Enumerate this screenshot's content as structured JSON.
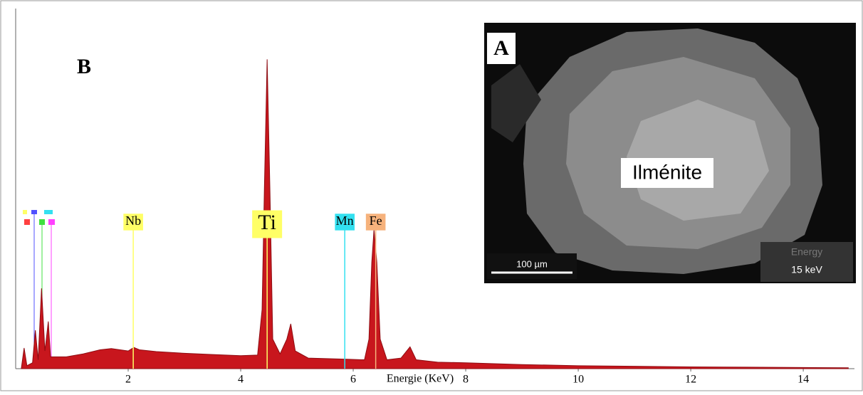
{
  "chart_data": {
    "type": "area",
    "panel_label": "B",
    "x_label": "Energie (KeV)",
    "color": "#c8161d",
    "xlim": [
      0,
      14.91
    ],
    "ylim": [
      0,
      61
    ],
    "xticks": [
      2,
      4,
      6,
      8,
      10,
      12,
      14
    ],
    "x": [
      0.1,
      0.15,
      0.2,
      0.3,
      0.35,
      0.4,
      0.46,
      0.52,
      0.58,
      0.62,
      0.7,
      0.9,
      1.2,
      1.5,
      1.7,
      2.0,
      2.1,
      2.2,
      2.5,
      3.0,
      3.5,
      4.0,
      4.3,
      4.38,
      4.42,
      4.47,
      4.52,
      4.57,
      4.7,
      4.82,
      4.89,
      4.97,
      5.2,
      5.9,
      6.2,
      6.28,
      6.33,
      6.37,
      6.42,
      6.48,
      6.6,
      6.85,
      7.01,
      7.12,
      7.5,
      8,
      9,
      10,
      11,
      12,
      13,
      14,
      14.8
    ],
    "values": [
      0,
      3.5,
      0.5,
      1,
      6.5,
      1.5,
      13.6,
      3,
      8,
      2,
      2,
      2,
      2.5,
      3.2,
      3.4,
      3,
      3.6,
      3.2,
      2.9,
      2.6,
      2.4,
      2.2,
      2.3,
      10,
      30,
      52.4,
      30,
      5,
      2.5,
      5,
      7.6,
      3,
      1.8,
      1.6,
      1.5,
      5,
      18,
      23.6,
      18,
      5,
      1.5,
      1.8,
      3.7,
      1.5,
      1.1,
      1,
      0.7,
      0.5,
      0.4,
      0.3,
      0.25,
      0.2,
      0.15
    ],
    "peaks": [
      {
        "label": "Nb",
        "x": 2.09,
        "color": "#ffff66"
      },
      {
        "label": "Ti",
        "x": 4.47,
        "color": "#ffff66"
      },
      {
        "label": "Mn",
        "x": 5.85,
        "color": "#33e0f0"
      },
      {
        "label": "Fe",
        "x": 6.4,
        "color": "#f6b27c"
      }
    ],
    "inset": {
      "label": "A",
      "mineral": "Ilménite",
      "scale_bar": "100 µm",
      "energy_title": "Energy",
      "energy_value": "15 keV"
    }
  }
}
